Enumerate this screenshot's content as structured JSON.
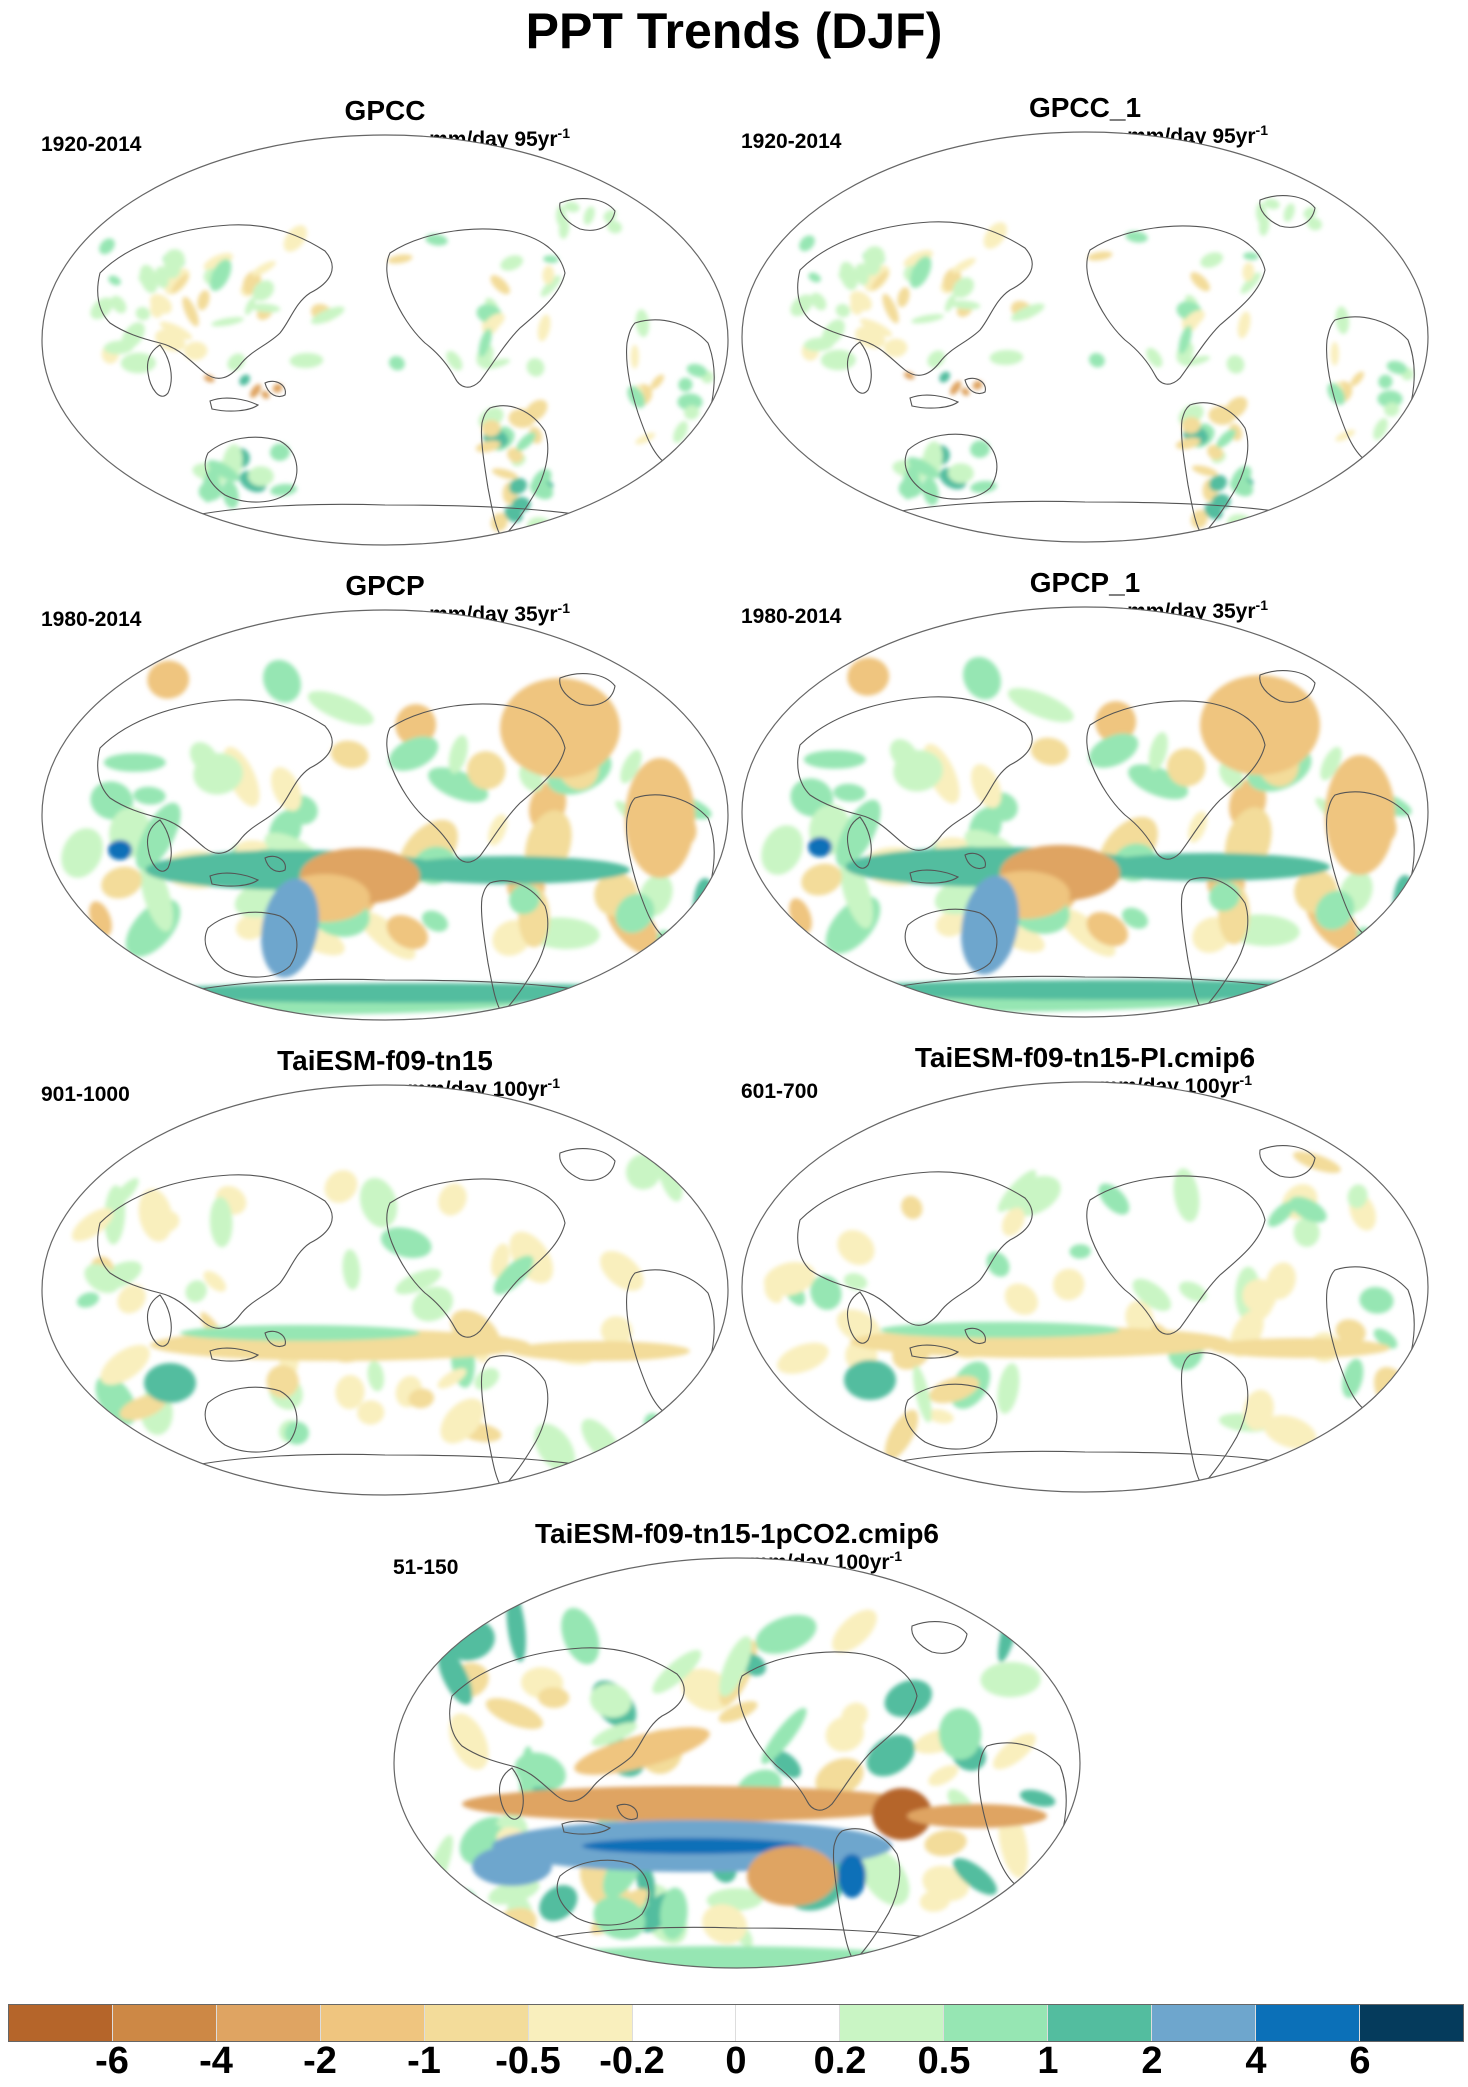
{
  "figure": {
    "title": "PPT Trends (DJF)"
  },
  "panels": [
    {
      "title": "GPCC",
      "period": "1920-2014",
      "units": "mm/day 95yr",
      "units_sup": "-1",
      "pattern": "land_obs_century"
    },
    {
      "title": "GPCC_1",
      "period": "1920-2014",
      "units": "mm/day 95yr",
      "units_sup": "-1",
      "pattern": "land_obs_century"
    },
    {
      "title": "GPCP",
      "period": "1980-2014",
      "units": "mm/day 35yr",
      "units_sup": "-1",
      "pattern": "satellite_era"
    },
    {
      "title": "GPCP_1",
      "period": "1980-2014",
      "units": "mm/day 35yr",
      "units_sup": "-1",
      "pattern": "satellite_era"
    },
    {
      "title": "TaiESM-f09-tn15",
      "period": "901-1000",
      "units": "mm/day 100yr",
      "units_sup": "-1",
      "pattern": "control_weak"
    },
    {
      "title": "TaiESM-f09-tn15-PI.cmip6",
      "period": "601-700",
      "units": "mm/day 100yr",
      "units_sup": "-1",
      "pattern": "control_weak"
    },
    {
      "title": "TaiESM-f09-tn15-1pCO2.cmip6",
      "period": "51-150",
      "units": "mm/day 100yr",
      "units_sup": "-1",
      "pattern": "forced_strong"
    }
  ],
  "colorbar": {
    "colors": [
      "#b5652a",
      "#cd8845",
      "#dfa462",
      "#efc57f",
      "#f3dc9a",
      "#f9efbd",
      "#ffffff",
      "#ffffff",
      "#c9f5c4",
      "#96e6b3",
      "#53bd9f",
      "#6ea6cd",
      "#0b70b8",
      "#053b5c"
    ],
    "labels": [
      "-6",
      "-4",
      "-2",
      "-1",
      "-0.5",
      "-0.2",
      "0",
      "0.2",
      "0.5",
      "1",
      "2",
      "4",
      "6"
    ]
  }
}
